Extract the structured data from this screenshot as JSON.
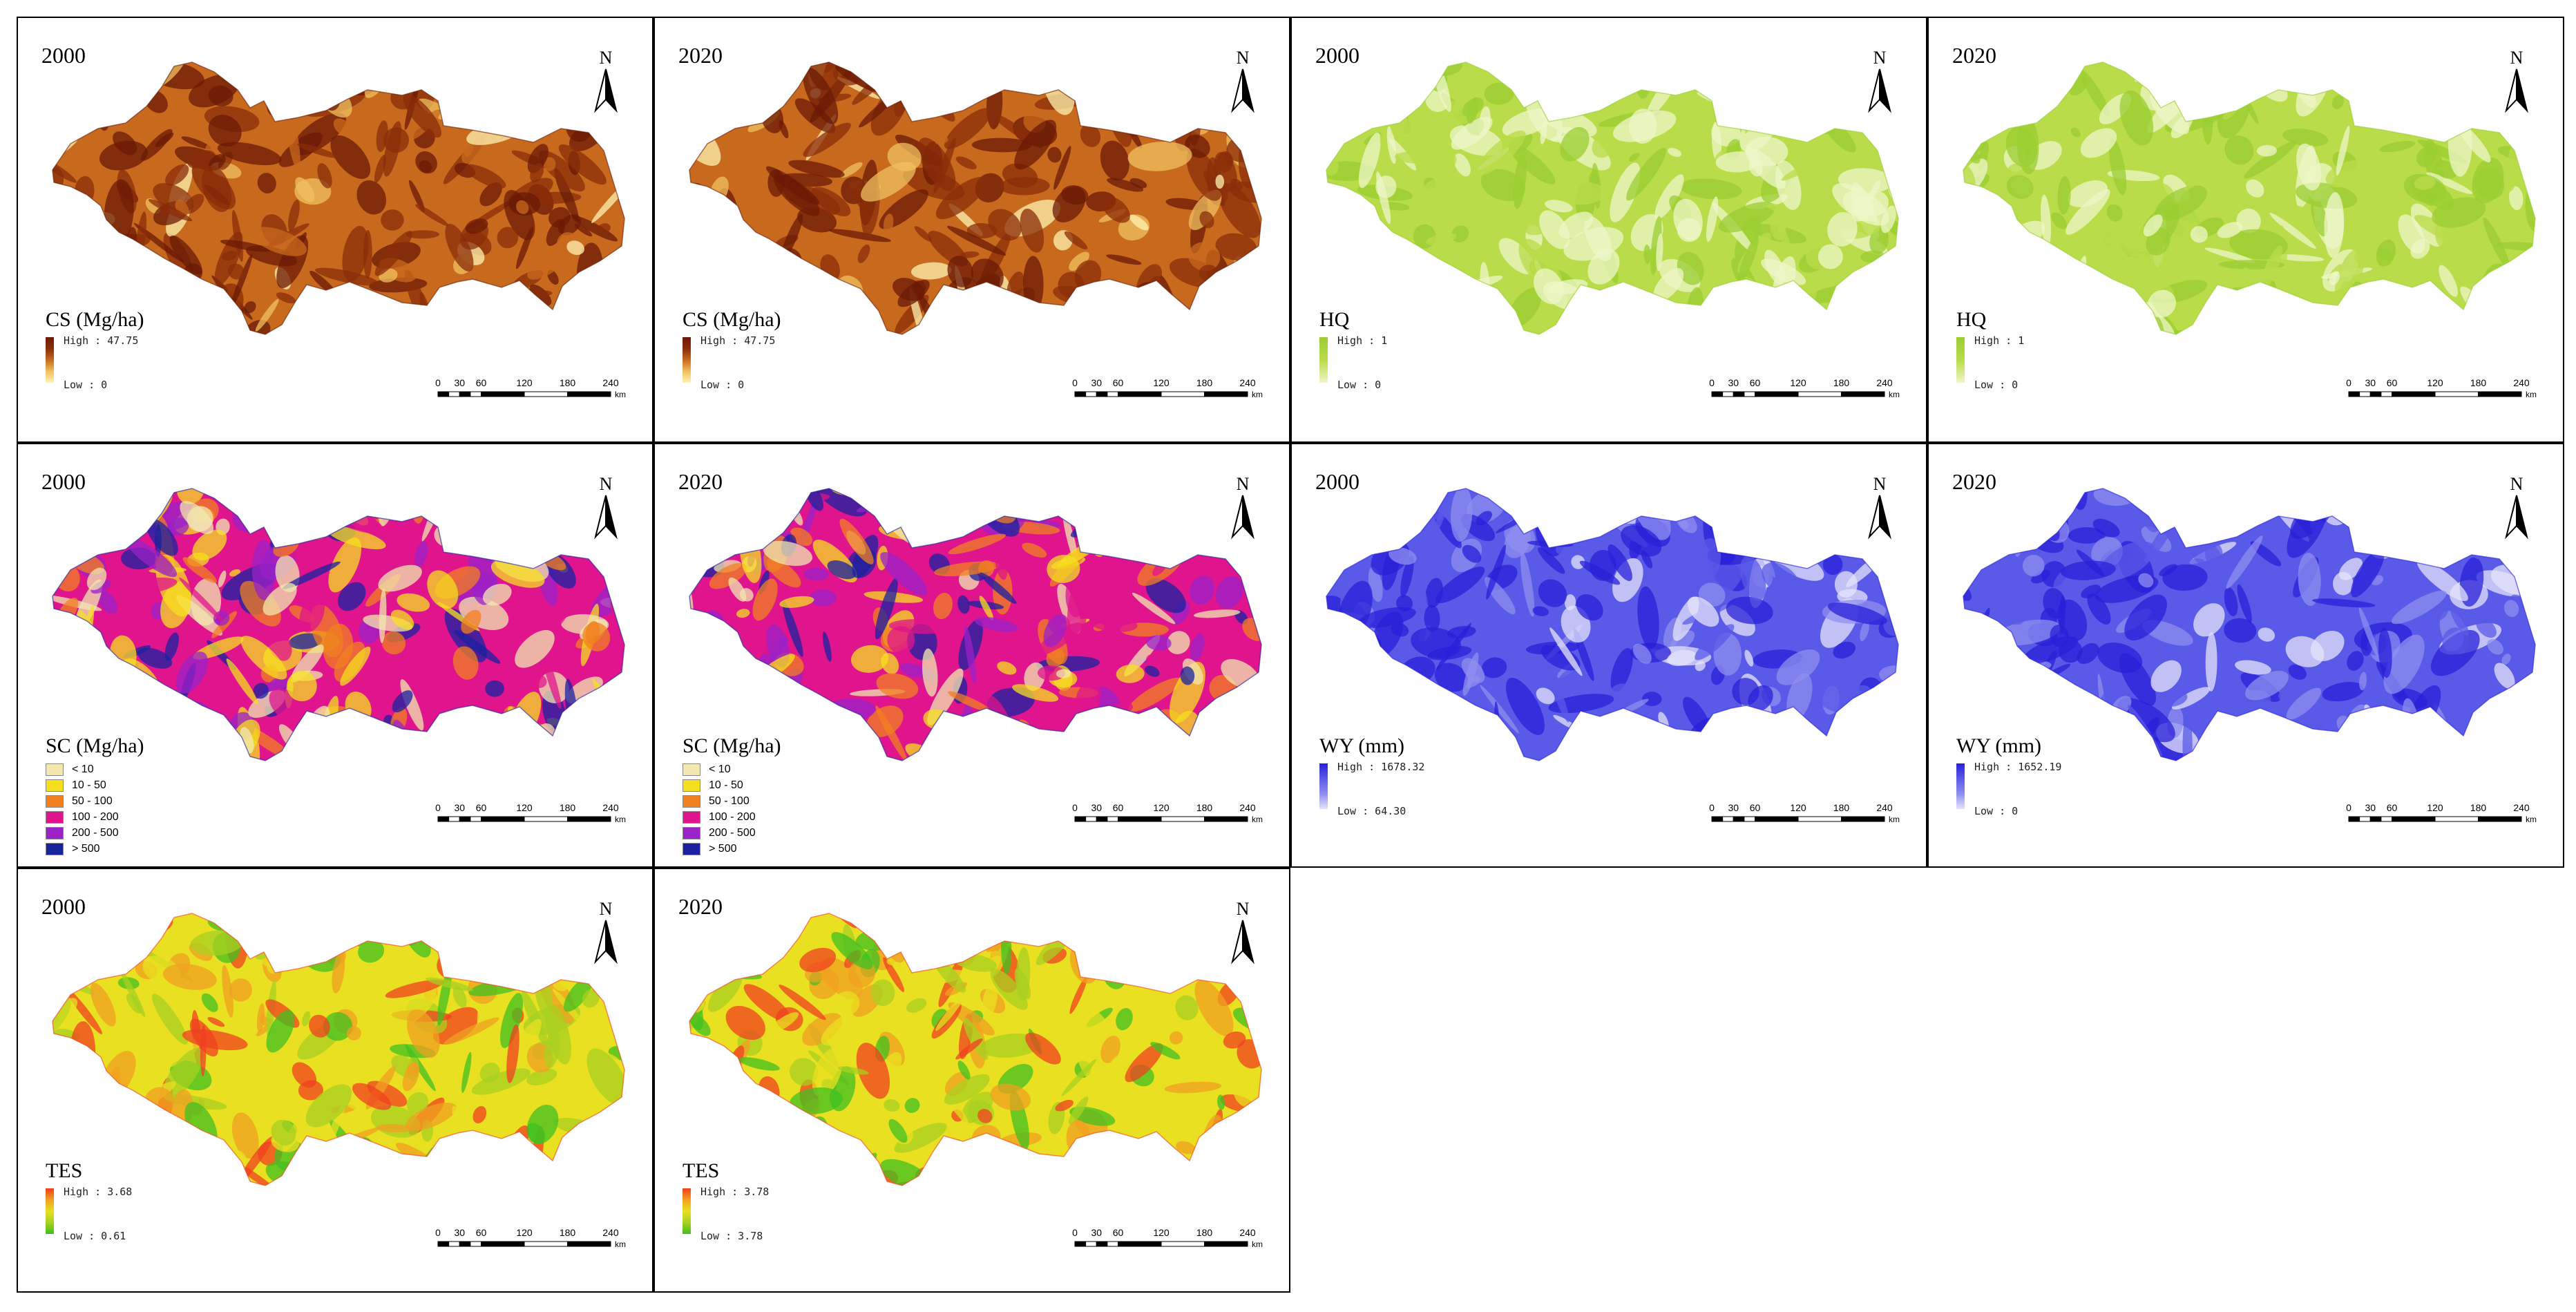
{
  "north_label": "N",
  "scale": {
    "ticks": [
      "0",
      "30",
      "60",
      "120",
      "180",
      "240"
    ],
    "tick_values": [
      0,
      30,
      60,
      120,
      180,
      240
    ],
    "unit": "km"
  },
  "colors": {
    "cs": [
      "#fff3b0",
      "#f0c060",
      "#c86a1e",
      "#8a2e0a",
      "#6b1a06"
    ],
    "hq": [
      "#eef7c8",
      "#b9dc4a",
      "#9acd32"
    ],
    "sc": [
      "#f2e8b0",
      "#f5e020",
      "#f08020",
      "#e0148c",
      "#9a22c8",
      "#1a22a0"
    ],
    "wy": [
      "#e4e4fb",
      "#8f8ff0",
      "#5a5ae8",
      "#2a20d8"
    ],
    "tes": [
      "#40c020",
      "#a8d020",
      "#e8e020",
      "#f0a020",
      "#f04020"
    ]
  },
  "panels": [
    {
      "id": "cs2000",
      "year": "2000",
      "legend_type": "gradient",
      "legend_title": "CS (Mg/ha)",
      "high": "High : 47.75",
      "low": "Low : 0",
      "palette": "cs"
    },
    {
      "id": "cs2020",
      "year": "2020",
      "legend_type": "gradient",
      "legend_title": "CS (Mg/ha)",
      "high": "High : 47.75",
      "low": "Low : 0",
      "palette": "cs"
    },
    {
      "id": "hq2000",
      "year": "2000",
      "legend_type": "gradient",
      "legend_title": "HQ",
      "high": "High : 1",
      "low": "Low : 0",
      "palette": "hq"
    },
    {
      "id": "hq2020",
      "year": "2020",
      "legend_type": "gradient",
      "legend_title": "HQ",
      "high": "High : 1",
      "low": "Low : 0",
      "palette": "hq"
    },
    {
      "id": "sc2000",
      "year": "2000",
      "legend_type": "classes",
      "legend_title": "SC (Mg/ha)",
      "classes": [
        "< 10",
        "10 - 50",
        "50 - 100",
        "100 - 200",
        "200 - 500",
        "> 500"
      ],
      "palette": "sc"
    },
    {
      "id": "sc2020",
      "year": "2020",
      "legend_type": "classes",
      "legend_title": "SC (Mg/ha)",
      "classes": [
        "< 10",
        "10 - 50",
        "50 - 100",
        "100 - 200",
        "200 - 500",
        "> 500"
      ],
      "palette": "sc"
    },
    {
      "id": "wy2000",
      "year": "2000",
      "legend_type": "gradient",
      "legend_title": "WY (mm)",
      "high": "High : 1678.32",
      "low": "Low : 64.30",
      "palette": "wy"
    },
    {
      "id": "wy2020",
      "year": "2020",
      "legend_type": "gradient",
      "legend_title": "WY (mm)",
      "high": "High : 1652.19",
      "low": "Low : 0",
      "palette": "wy"
    },
    {
      "id": "tes2000",
      "year": "2000",
      "legend_type": "gradient",
      "legend_title": "TES",
      "high": "High : 3.68",
      "low": "Low : 0.61",
      "palette": "tes"
    },
    {
      "id": "tes2020",
      "year": "2020",
      "legend_type": "gradient",
      "legend_title": "TES",
      "high": "High : 3.78",
      "low": "Low : 3.78",
      "palette": "tes"
    }
  ]
}
